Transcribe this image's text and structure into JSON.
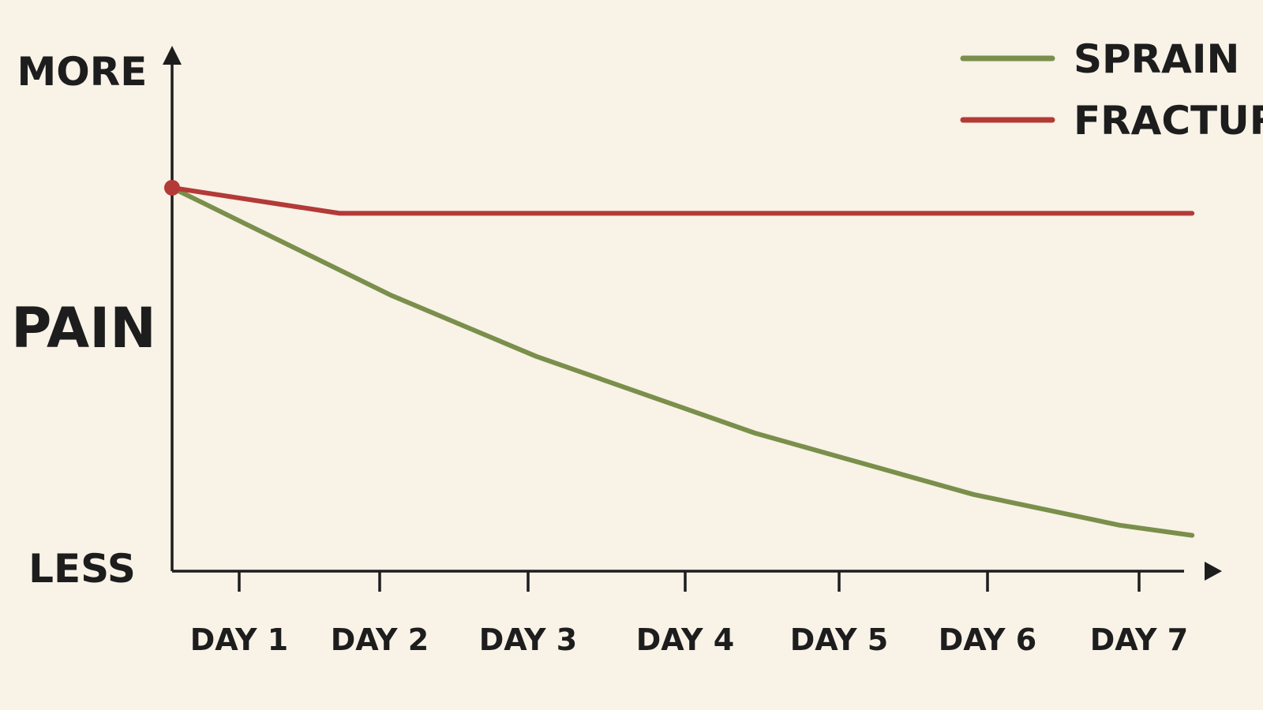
{
  "chart_data": {
    "type": "line",
    "title": "",
    "xlabel": "",
    "ylabel": "PAIN",
    "y_top_label": "MORE",
    "y_bottom_label": "LESS",
    "categories": [
      "DAY 1",
      "DAY 2",
      "DAY 3",
      "DAY 4",
      "DAY 5",
      "DAY 6",
      "DAY 7"
    ],
    "ylim": [
      0,
      100
    ],
    "grid": false,
    "legend_position": "top-right",
    "series": [
      {
        "name": "SPRAIN",
        "color": "#7a8f4b",
        "points": [
          [
            0.0,
            75
          ],
          [
            0.5,
            68
          ],
          [
            1.0,
            61
          ],
          [
            1.5,
            54
          ],
          [
            2.0,
            48
          ],
          [
            2.5,
            42
          ],
          [
            3.0,
            37
          ],
          [
            3.5,
            32
          ],
          [
            4.0,
            27
          ],
          [
            4.5,
            23
          ],
          [
            5.0,
            19
          ],
          [
            5.5,
            15
          ],
          [
            6.0,
            12
          ],
          [
            6.5,
            9
          ],
          [
            7.0,
            7
          ]
        ]
      },
      {
        "name": "FRACTURE",
        "color": "#b33a36",
        "start_marker": true,
        "points": [
          [
            0.0,
            75
          ],
          [
            1.15,
            70
          ],
          [
            7.0,
            70
          ]
        ]
      }
    ]
  }
}
